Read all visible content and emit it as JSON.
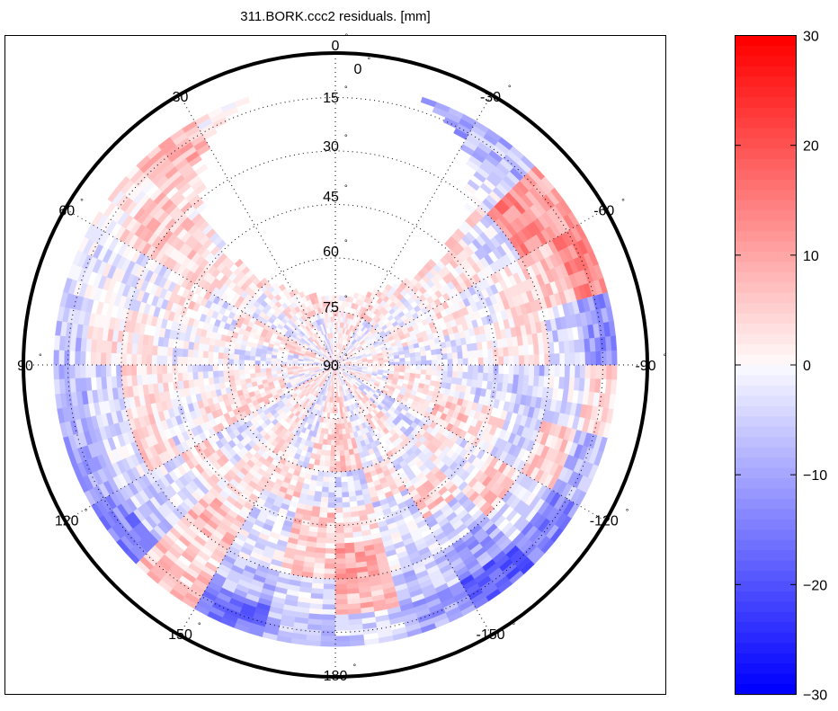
{
  "chart_data": {
    "type": "heatmap",
    "projection": "polar (azimuth / elevation)",
    "title": "311.BORK.ccc2 residuals. [mm]",
    "azimuth_tick_labels": [
      "0",
      "30",
      "60",
      "90",
      "120",
      "150",
      "180",
      "-150",
      "-120",
      "-90",
      "-60",
      "-30"
    ],
    "azimuth_ticks_deg": [
      0,
      30,
      60,
      90,
      120,
      150,
      180,
      210,
      240,
      270,
      300,
      330
    ],
    "elevation_tick_labels": [
      "0",
      "15",
      "30",
      "45",
      "60",
      "75",
      "90"
    ],
    "elevation_ticks_deg": [
      0,
      15,
      30,
      45,
      60,
      75,
      90
    ],
    "degree_symbol": "°",
    "grid": true,
    "colorbar": {
      "range": [
        -30,
        30
      ],
      "tick_labels": [
        "30",
        "20",
        "10",
        "0",
        "−10",
        "−20",
        "−30"
      ],
      "tick_values": [
        30,
        20,
        10,
        0,
        -10,
        -20,
        -30
      ],
      "colormap": "blue-white-red",
      "low_color": "#0000ff",
      "mid_color": "#ffffff",
      "high_color": "#ff0000",
      "placement": "right"
    },
    "elevation_bins_deg": [
      [
        11,
        20
      ],
      [
        20,
        30
      ],
      [
        30,
        40
      ],
      [
        40,
        50
      ],
      [
        50,
        60
      ],
      [
        60,
        75
      ],
      [
        75,
        90
      ]
    ],
    "azimuth_bin_width_deg": 15,
    "azimuth_bin_starts_deg": [
      0,
      15,
      30,
      45,
      60,
      75,
      90,
      105,
      120,
      135,
      150,
      165,
      180,
      195,
      210,
      225,
      240,
      255,
      270,
      285,
      300,
      315,
      330,
      345
    ],
    "residuals_mm": [
      [
        0,
        0,
        8,
        2,
        -3,
        -6,
        -8,
        -10,
        -14,
        6,
        -16,
        -8,
        -5,
        -10,
        -18,
        -14,
        -8,
        4,
        -12,
        14,
        10,
        -8,
        -12,
        0
      ],
      [
        0,
        0,
        4,
        6,
        -2,
        3,
        -4,
        -3,
        -6,
        5,
        -8,
        -4,
        8,
        -6,
        -10,
        -4,
        5,
        -3,
        -4,
        6,
        14,
        -3,
        -5,
        0
      ],
      [
        0,
        0,
        2,
        5,
        -2,
        2,
        3,
        4,
        -3,
        7,
        -2,
        5,
        10,
        -3,
        -5,
        6,
        -4,
        -6,
        3,
        4,
        -4,
        3,
        -2,
        0
      ],
      [
        0,
        0,
        0,
        3,
        4,
        -2,
        2,
        -3,
        4,
        2,
        -4,
        6,
        3,
        -4,
        5,
        -3,
        2,
        -5,
        2,
        -3,
        3,
        4,
        0,
        0
      ],
      [
        0,
        0,
        5,
        2,
        -3,
        2,
        -2,
        3,
        -4,
        3,
        5,
        -3,
        -4,
        4,
        -3,
        2,
        6,
        -2,
        -3,
        3,
        2,
        4,
        5,
        0
      ],
      [
        3,
        4,
        2,
        -2,
        3,
        -3,
        2,
        4,
        -2,
        3,
        -3,
        4,
        6,
        -2,
        3,
        -4,
        2,
        3,
        -3,
        2,
        -2,
        3,
        4,
        2
      ],
      [
        2,
        -3,
        3,
        -2,
        4,
        -3,
        2,
        -2,
        3,
        2,
        -3,
        3,
        4,
        -2,
        3,
        -3,
        2,
        -2,
        3,
        -2,
        2,
        -3,
        3,
        2
      ]
    ]
  }
}
